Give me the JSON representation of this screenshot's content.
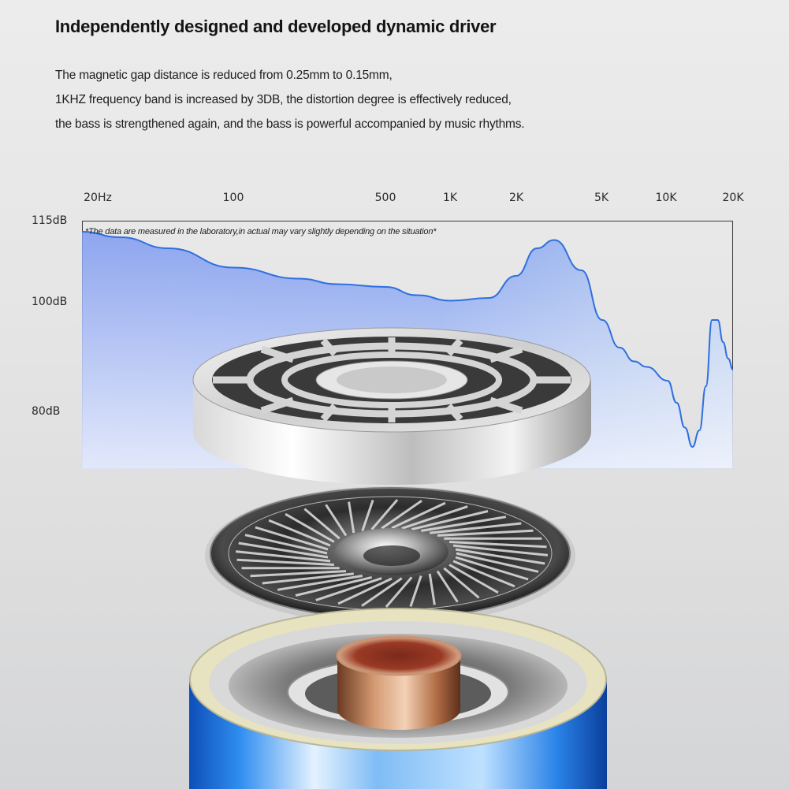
{
  "heading": {
    "title": "Independently designed and developed dynamic driver",
    "lines": [
      "The magnetic gap distance is reduced from 0.25mm to 0.15mm,",
      "1KHZ frequency band is increased by 3DB, the distortion degree is effectively reduced,",
      "the bass is strengthened again, and the bass is powerful accompanied by music rhythms."
    ]
  },
  "chart_data": {
    "type": "area",
    "x_ticks": [
      "20Hz",
      "100",
      "500",
      "1K",
      "2K",
      "5K",
      "10K",
      "20K"
    ],
    "y_ticks": [
      "115dB",
      "100dB",
      "80dB"
    ],
    "note": "*The data are measured in the laboratory,in actual may vary slightly depending on the situation*",
    "x_scale": "log",
    "xlim": [
      20,
      20000
    ],
    "ylim": [
      70,
      115
    ],
    "grid": false,
    "fill_color": "#6a8ff0",
    "line_color": "#2f6fe0",
    "x": [
      20,
      30,
      50,
      100,
      200,
      300,
      500,
      700,
      1000,
      1500,
      2000,
      2500,
      3000,
      4000,
      5000,
      6000,
      7000,
      8000,
      10000,
      11000,
      12000,
      13000,
      14000,
      15000,
      16000,
      17000,
      18000,
      19000,
      20000
    ],
    "y": [
      113,
      112,
      110,
      106.5,
      104.5,
      103.5,
      103,
      101.5,
      100.5,
      101,
      105,
      110,
      111.5,
      106,
      97,
      92,
      89.5,
      88.5,
      86,
      82,
      77.5,
      74,
      77,
      85,
      97,
      97,
      93,
      90,
      88
    ]
  },
  "driver": {
    "parts": [
      "magnet-ring",
      "diaphragm",
      "voice-coil-housing"
    ],
    "accent_color": "#1e6fd8"
  }
}
